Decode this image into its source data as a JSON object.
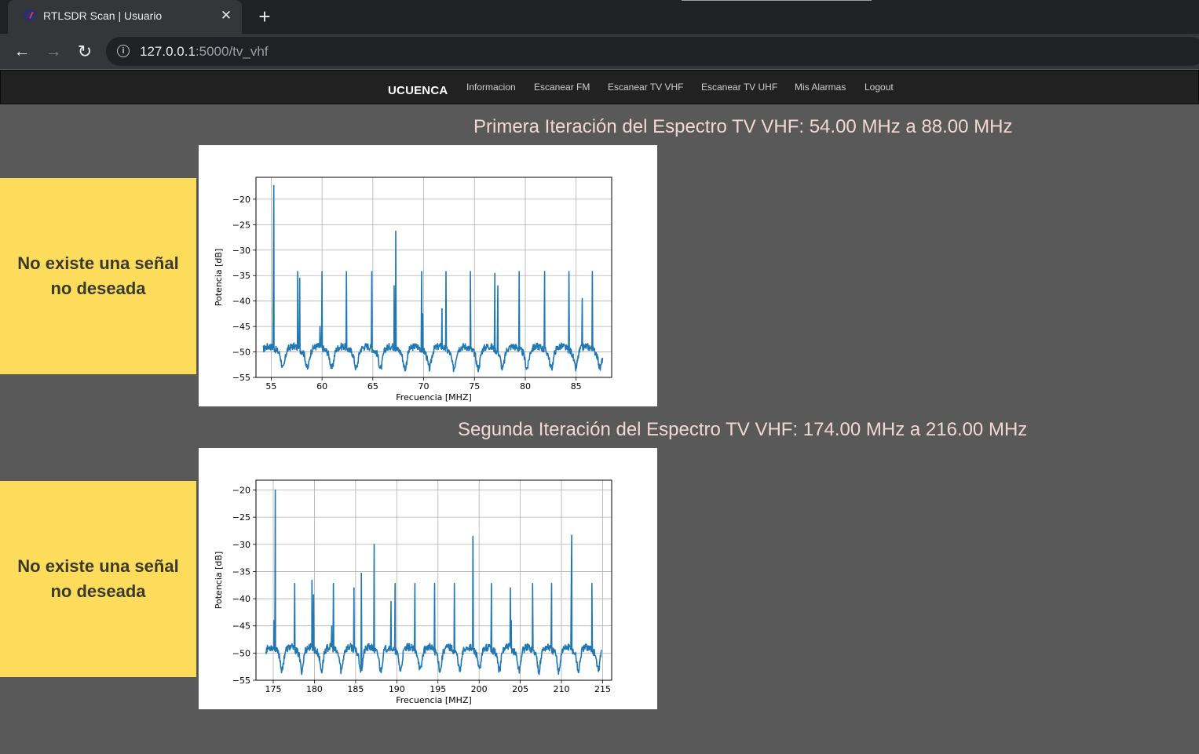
{
  "browser": {
    "tab_title": "RTLSDR Scan | Usuario",
    "close_glyph": "✕",
    "new_tab_glyph": "+",
    "url_host": "127.0.0.1",
    "url_path": ":5000/tv_vhf"
  },
  "navbar": {
    "brand": "UCUENCA",
    "links": [
      "Informacion",
      "Escanear FM",
      "Escanear TV VHF",
      "Escanear TV UHF",
      "Mis Alarmas",
      "Logout"
    ]
  },
  "sections": [
    {
      "title": "Primera Iteración del Espectro TV VHF: 54.00 MHz a 88.00 MHz",
      "alert": {
        "line1": "No existe una señal",
        "line2": "no deseada"
      }
    },
    {
      "title": "Segunda Iteración del Espectro TV VHF: 174.00 MHz a 216.00 MHz",
      "alert": {
        "line1": "No existe una señal",
        "line2": "no deseada"
      }
    }
  ],
  "colors": {
    "line": "#1f77b4",
    "alert_bg": "#fddc5c",
    "title": "#f3d6d6"
  },
  "chart_data": [
    {
      "type": "line",
      "title": "",
      "xlabel": "Frecuencia [MHZ]",
      "ylabel": "Potencia [dB]",
      "xlim": [
        53.5,
        88.5
      ],
      "ylim": [
        -55,
        -15.7
      ],
      "xticks": [
        55,
        60,
        65,
        70,
        75,
        80,
        85
      ],
      "yticks": [
        -55,
        -50,
        -45,
        -40,
        -35,
        -30,
        -25,
        -20
      ],
      "grid": true,
      "x_range": [
        54.2,
        87.6
      ],
      "baseline": -49.5,
      "peaks": [
        {
          "x": 55.25,
          "y": -17.3
        },
        {
          "x": 55.2,
          "y": -37.5
        },
        {
          "x": 57.6,
          "y": -34.2
        },
        {
          "x": 57.8,
          "y": -35.5
        },
        {
          "x": 59.8,
          "y": -45
        },
        {
          "x": 60.0,
          "y": -34.2
        },
        {
          "x": 62.4,
          "y": -34.2
        },
        {
          "x": 64.9,
          "y": -34.2
        },
        {
          "x": 67.25,
          "y": -26.3
        },
        {
          "x": 67.1,
          "y": -37
        },
        {
          "x": 69.8,
          "y": -34.2
        },
        {
          "x": 69.9,
          "y": -42.5
        },
        {
          "x": 71.8,
          "y": -41.5
        },
        {
          "x": 72.2,
          "y": -34.2
        },
        {
          "x": 74.6,
          "y": -34.2
        },
        {
          "x": 77.0,
          "y": -34.6
        },
        {
          "x": 77.3,
          "y": -37
        },
        {
          "x": 79.4,
          "y": -34.2
        },
        {
          "x": 81.9,
          "y": -34.2
        },
        {
          "x": 84.3,
          "y": -34.2
        },
        {
          "x": 85.6,
          "y": -39.5
        },
        {
          "x": 86.6,
          "y": -34.2
        }
      ]
    },
    {
      "type": "line",
      "title": "",
      "xlabel": "Frecuencia [MHZ]",
      "ylabel": "Potencia [dB]",
      "xlim": [
        172.9,
        216.1
      ],
      "ylim": [
        -55,
        -18.2
      ],
      "xticks": [
        175,
        180,
        185,
        190,
        195,
        200,
        205,
        210,
        215
      ],
      "yticks": [
        -55,
        -50,
        -45,
        -40,
        -35,
        -30,
        -25,
        -20
      ],
      "grid": true,
      "x_range": [
        174.1,
        214.9
      ],
      "baseline": -49.5,
      "peaks": [
        {
          "x": 175.25,
          "y": -20
        },
        {
          "x": 175.1,
          "y": -44
        },
        {
          "x": 177.6,
          "y": -37.2
        },
        {
          "x": 179.7,
          "y": -36.6
        },
        {
          "x": 179.9,
          "y": -39.3
        },
        {
          "x": 182.3,
          "y": -37.2
        },
        {
          "x": 182.1,
          "y": -45
        },
        {
          "x": 184.8,
          "y": -38
        },
        {
          "x": 185.7,
          "y": -35.3
        },
        {
          "x": 187.25,
          "y": -30
        },
        {
          "x": 189.3,
          "y": -40.5
        },
        {
          "x": 189.8,
          "y": -37.2
        },
        {
          "x": 192.2,
          "y": -37.2
        },
        {
          "x": 194.6,
          "y": -37.2
        },
        {
          "x": 197.0,
          "y": -37.2
        },
        {
          "x": 199.25,
          "y": -28.5
        },
        {
          "x": 201.5,
          "y": -37.2
        },
        {
          "x": 203.8,
          "y": -38
        },
        {
          "x": 203.9,
          "y": -44
        },
        {
          "x": 206.5,
          "y": -37.2
        },
        {
          "x": 208.8,
          "y": -37.2
        },
        {
          "x": 211.2,
          "y": -36.6
        },
        {
          "x": 211.25,
          "y": -28.3
        },
        {
          "x": 213.7,
          "y": -37.2
        }
      ]
    }
  ]
}
